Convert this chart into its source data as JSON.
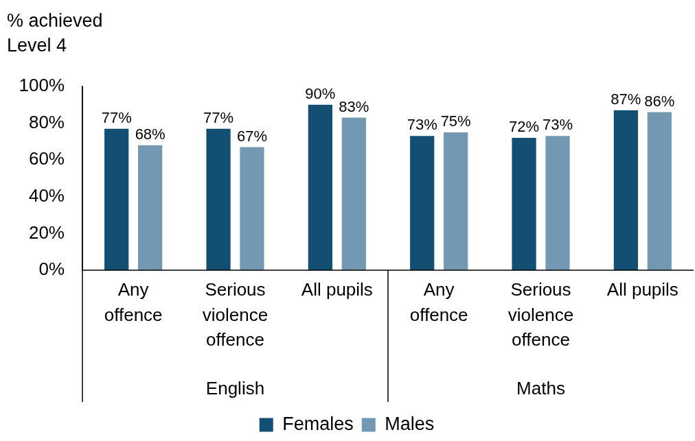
{
  "chart_data": {
    "type": "bar",
    "ylabel": "% achieved Level 4",
    "categories": [
      "Any offence",
      "Serious violence offence",
      "All pupils",
      "Any offence",
      "Serious violence offence",
      "All pupils"
    ],
    "series": [
      {
        "name": "Females",
        "color": "#134f72",
        "values": [
          77,
          77,
          90,
          73,
          72,
          87
        ],
        "value_labels": [
          "77%",
          "77%",
          "90%",
          "73%",
          "72%",
          "87%"
        ]
      },
      {
        "name": "Males",
        "color": "#7399b2",
        "values": [
          68,
          67,
          83,
          75,
          73,
          86
        ],
        "value_labels": [
          "68%",
          "67%",
          "83%",
          "75%",
          "73%",
          "86%"
        ]
      }
    ],
    "annotations": [
      "English",
      "Maths"
    ],
    "ylim": [
      0,
      100
    ],
    "yticks": [
      {
        "value": 0,
        "label": "0%"
      },
      {
        "value": 20,
        "label": "20%"
      },
      {
        "value": 40,
        "label": "40%"
      },
      {
        "value": 60,
        "label": "60%"
      },
      {
        "value": 80,
        "label": "80%"
      },
      {
        "value": 100,
        "label": "100%"
      }
    ],
    "grid": false,
    "legend": "bottom"
  }
}
